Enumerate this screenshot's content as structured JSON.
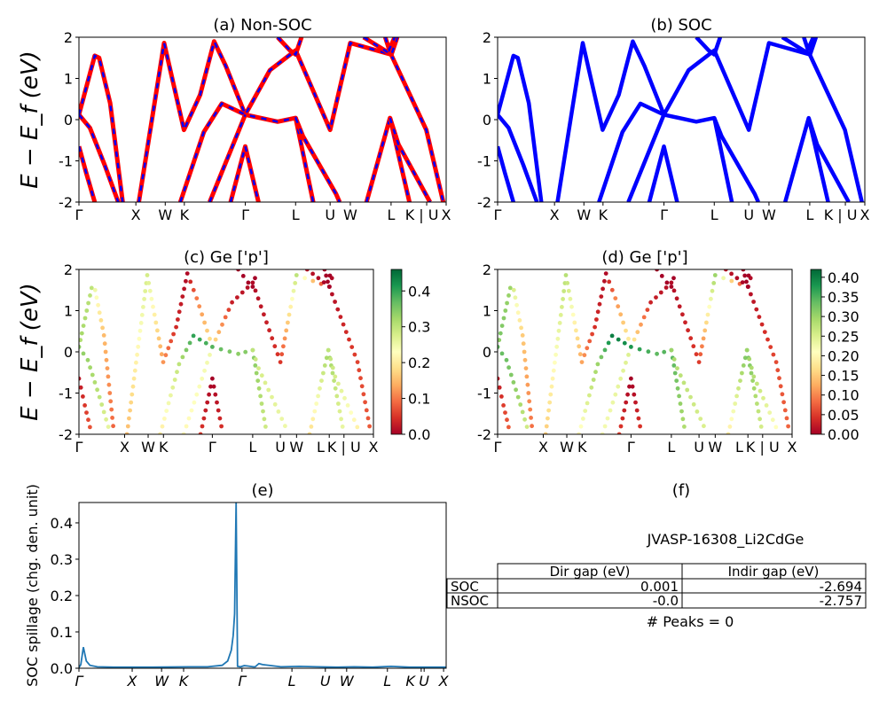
{
  "chart_data": [
    {
      "id": "a",
      "type": "line",
      "title": "(a) Non-SOC",
      "ylabel": "E − E_f (eV)",
      "ylim": [
        -2,
        2
      ],
      "yticks": [
        -2,
        -1,
        0,
        1,
        2
      ],
      "xticks": [
        [
          0,
          "Γ"
        ],
        [
          0.155,
          "X"
        ],
        [
          0.235,
          "W"
        ],
        [
          0.287,
          "K"
        ],
        [
          0.453,
          "Γ"
        ],
        [
          0.59,
          "L"
        ],
        [
          0.684,
          "U"
        ],
        [
          0.739,
          "W"
        ],
        [
          0.85,
          "L"
        ],
        [
          0.947,
          "K | U"
        ],
        [
          1.0,
          "X"
        ]
      ],
      "style": "red-with-blue-dash",
      "colors": {
        "line": "#ff0000",
        "dash": "#0000ff"
      }
    },
    {
      "id": "b",
      "type": "line",
      "title": "(b) SOC",
      "ylim": [
        -2,
        2
      ],
      "yticks": [
        -2,
        -1,
        0,
        1,
        2
      ],
      "xticks": [
        [
          0,
          "Γ"
        ],
        [
          0.155,
          "X"
        ],
        [
          0.235,
          "W"
        ],
        [
          0.287,
          "K"
        ],
        [
          0.453,
          "Γ"
        ],
        [
          0.59,
          "L"
        ],
        [
          0.684,
          "U"
        ],
        [
          0.739,
          "W"
        ],
        [
          0.85,
          "L"
        ],
        [
          0.947,
          "K | U"
        ],
        [
          1.0,
          "X"
        ]
      ],
      "style": "blue",
      "colors": {
        "line": "#0000ff"
      }
    },
    {
      "id": "c",
      "type": "scatter",
      "title": "(c)  Ge ['p']",
      "ylabel": "E − E_f (eV)",
      "ylim": [
        -2,
        2
      ],
      "yticks": [
        -2,
        -1,
        0,
        1,
        2
      ],
      "xticks": [
        [
          0,
          "Γ"
        ],
        [
          0.155,
          "X"
        ],
        [
          0.235,
          "W"
        ],
        [
          0.287,
          "K"
        ],
        [
          0.453,
          "Γ"
        ],
        [
          0.59,
          "L"
        ],
        [
          0.684,
          "U"
        ],
        [
          0.739,
          "W"
        ],
        [
          0.85,
          "L"
        ],
        [
          0.9,
          "K | U"
        ],
        [
          1.0,
          "X"
        ]
      ],
      "colormap": "RdYlGn",
      "clim": [
        0,
        0.46
      ],
      "colorbar_ticks": [
        "0.0",
        "0.1",
        "0.2",
        "0.3",
        "0.4"
      ]
    },
    {
      "id": "d",
      "type": "scatter",
      "title": "(d) Ge ['p']",
      "ylim": [
        -2,
        2
      ],
      "yticks": [
        -2,
        -1,
        0,
        1,
        2
      ],
      "xticks": [
        [
          0,
          "Γ"
        ],
        [
          0.155,
          "X"
        ],
        [
          0.235,
          "W"
        ],
        [
          0.287,
          "K"
        ],
        [
          0.453,
          "Γ"
        ],
        [
          0.59,
          "L"
        ],
        [
          0.684,
          "U"
        ],
        [
          0.739,
          "W"
        ],
        [
          0.85,
          "L"
        ],
        [
          0.9,
          "K | U"
        ],
        [
          1.0,
          "X"
        ]
      ],
      "colormap": "RdYlGn",
      "clim": [
        0,
        0.42
      ],
      "colorbar_ticks": [
        "0.00",
        "0.05",
        "0.10",
        "0.15",
        "0.20",
        "0.25",
        "0.30",
        "0.35",
        "0.40"
      ]
    },
    {
      "id": "e",
      "type": "line",
      "title": "(e)",
      "ylabel": "SOC spillage (chg. den. unit)",
      "ylim": [
        0,
        0.456
      ],
      "yticks": [
        "0.0",
        "0.1",
        "0.2",
        "0.3",
        "0.4"
      ],
      "xticks": [
        [
          0,
          "Γ"
        ],
        [
          0.145,
          "X"
        ],
        [
          0.225,
          "W"
        ],
        [
          0.285,
          "K"
        ],
        [
          0.444,
          "Γ"
        ],
        [
          0.58,
          "L"
        ],
        [
          0.671,
          "U"
        ],
        [
          0.729,
          "W"
        ],
        [
          0.84,
          "L"
        ],
        [
          0.932,
          "K"
        ],
        [
          0.94,
          "U"
        ],
        [
          0.993,
          "X"
        ]
      ],
      "color": "#1f77b4",
      "x": [
        0,
        0.005,
        0.012,
        0.02,
        0.03,
        0.05,
        0.1,
        0.2,
        0.3,
        0.35,
        0.39,
        0.405,
        0.415,
        0.42,
        0.424,
        0.428,
        0.432,
        0.44,
        0.45,
        0.46,
        0.475,
        0.48,
        0.49,
        0.5,
        0.55,
        0.6,
        0.65,
        0.7,
        0.75,
        0.8,
        0.85,
        0.9,
        0.95,
        1.0
      ],
      "y": [
        0.002,
        0.01,
        0.058,
        0.02,
        0.008,
        0.004,
        0.003,
        0.003,
        0.004,
        0.004,
        0.008,
        0.02,
        0.05,
        0.09,
        0.15,
        0.456,
        0.005,
        0.004,
        0.007,
        0.006,
        0.004,
        0.004,
        0.013,
        0.01,
        0.004,
        0.005,
        0.004,
        0.003,
        0.004,
        0.003,
        0.005,
        0.003,
        0.003,
        0.003
      ]
    }
  ],
  "bands": [
    [
      [
        0,
        0.12,
        0.3
      ],
      [
        0.01,
        0.45,
        0.32
      ],
      [
        0.043,
        1.55,
        0.3
      ],
      [
        0.055,
        1.5,
        0.25
      ],
      [
        0.085,
        0.4,
        0.15
      ],
      [
        0.119,
        -2,
        0.08
      ]
    ],
    [
      [
        0,
        0.12,
        0.34
      ],
      [
        0.03,
        -0.2,
        0.33
      ],
      [
        0.07,
        -1.1,
        0.3
      ],
      [
        0.107,
        -2,
        0.25
      ]
    ],
    [
      [
        0,
        -0.65,
        0.02
      ],
      [
        0.02,
        -1.3,
        0.05
      ],
      [
        0.043,
        -2,
        0.08
      ]
    ],
    [
      [
        0.163,
        -2,
        0.15
      ],
      [
        0.232,
        1.86,
        0.28
      ],
      [
        0.286,
        -0.25,
        0.12
      ],
      [
        0.33,
        0.6,
        0.04
      ],
      [
        0.368,
        1.9,
        0.01
      ],
      [
        0.4,
        1.3,
        0.1
      ],
      [
        0.453,
        0.12,
        0.2
      ],
      [
        0.52,
        1.2,
        0.03
      ],
      [
        0.59,
        1.68,
        0.01
      ],
      [
        0.684,
        -0.25,
        0.05
      ],
      [
        0.739,
        1.86,
        0.3
      ],
      [
        0.85,
        1.58,
        0.01
      ],
      [
        0.946,
        -0.25,
        0.06
      ],
      [
        0.992,
        -2,
        0.08
      ]
    ],
    [
      [
        0.276,
        -2,
        0.2
      ],
      [
        0.34,
        -0.3,
        0.3
      ],
      [
        0.389,
        0.39,
        0.4
      ],
      [
        0.453,
        0.12,
        0.38
      ],
      [
        0.541,
        -0.05,
        0.34
      ],
      [
        0.59,
        0.04,
        0.35
      ],
      [
        0.638,
        -2,
        0.28
      ]
    ],
    [
      [
        0.59,
        0.04,
        0.3
      ],
      [
        0.61,
        -0.4,
        0.28
      ],
      [
        0.7,
        -1.8,
        0.25
      ],
      [
        0.71,
        -2,
        0.25
      ]
    ],
    [
      [
        0.356,
        -2,
        0.22
      ],
      [
        0.453,
        0.12,
        0.25
      ]
    ],
    [
      [
        0.413,
        -2,
        0.05
      ],
      [
        0.453,
        -0.65,
        0.0
      ],
      [
        0.489,
        -2,
        0.05
      ]
    ],
    [
      [
        0.783,
        -2,
        0.18
      ],
      [
        0.847,
        0.04,
        0.33
      ],
      [
        0.9,
        -2,
        0.25
      ]
    ],
    [
      [
        0.847,
        0.04,
        0.3
      ],
      [
        0.87,
        -0.6,
        0.28
      ],
      [
        0.956,
        -2,
        0.2
      ]
    ],
    [
      [
        0.541,
        2,
        0.0
      ],
      [
        0.575,
        1.68,
        0.0
      ],
      [
        0.59,
        1.58,
        0.0
      ],
      [
        0.606,
        2,
        0.0
      ]
    ],
    [
      [
        0.775,
        2,
        0.02
      ],
      [
        0.851,
        1.58,
        0.0
      ],
      [
        0.867,
        2,
        0.02
      ]
    ],
    [
      [
        0.834,
        2,
        0.0
      ],
      [
        0.845,
        1.7,
        0.0
      ],
      [
        0.86,
        2,
        0.0
      ]
    ]
  ],
  "panel_f": {
    "title": "(f)",
    "material": "JVASP-16308_Li2CdGe",
    "table": {
      "columns": [
        "Dir gap (eV)",
        "Indir gap (eV)"
      ],
      "rows": [
        {
          "label": "SOC",
          "dir": "0.001",
          "indir": "-2.694"
        },
        {
          "label": "NSOC",
          "dir": "-0.0",
          "indir": "-2.757"
        }
      ]
    },
    "peaks": "# Peaks = 0"
  }
}
